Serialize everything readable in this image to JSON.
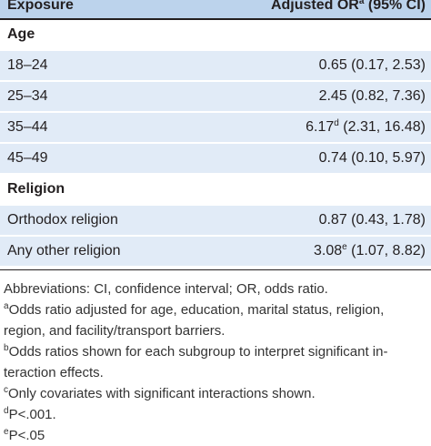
{
  "table": {
    "header": {
      "exposure": "Exposure",
      "or": "Adjusted OR",
      "sup": "a",
      "ci": "(95% CI)"
    },
    "rows": [
      {
        "section": "Age"
      },
      {
        "label": "18–24",
        "or": "0.65",
        "ci": "(0.17, 2.53)"
      },
      {
        "label": "25–34",
        "or": "2.45",
        "ci": "(0.82, 7.36)"
      },
      {
        "label": "35–44",
        "or": "6.17",
        "sup": "d",
        "ci": "(2.31, 16.48)"
      },
      {
        "label": "45–49",
        "or": "0.74",
        "ci": "(0.10, 5.97)"
      },
      {
        "section": "Religion"
      },
      {
        "label": "Orthodox religion",
        "or": "0.87",
        "ci": "(0.43, 1.78)"
      },
      {
        "label": "Any other religion",
        "or": "3.08",
        "sup": "e",
        "ci": "(1.07, 8.82)"
      }
    ]
  },
  "footnotes": [
    {
      "text": "Abbreviations: CI, confidence interval; OR, odds ratio."
    },
    {
      "mark": "a",
      "text": "Odds ratio adjusted for age, education, marital status, religion, region, and facility/transport barriers."
    },
    {
      "mark": "b",
      "text": "Odds ratios shown for each subgroup to interpret significant in­teraction effects."
    },
    {
      "mark": "c",
      "text": "Only covariates with significant interactions shown."
    },
    {
      "mark": "d",
      "text": "P<.001."
    },
    {
      "mark": "e",
      "text": "P<.05"
    }
  ]
}
